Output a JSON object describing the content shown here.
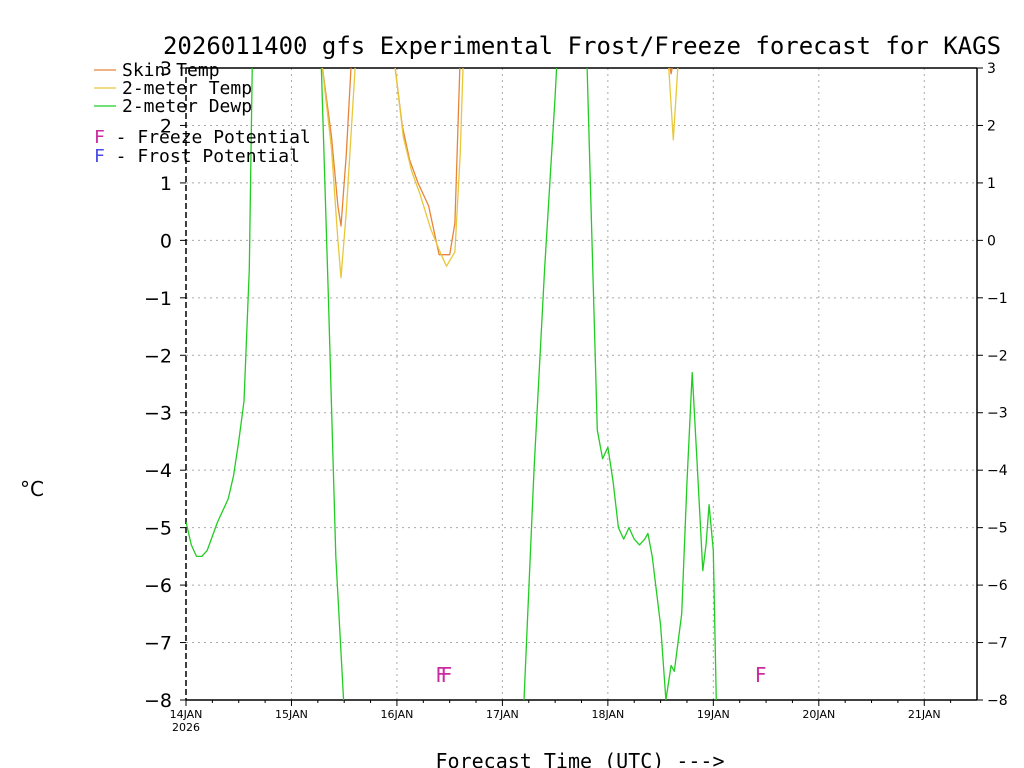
{
  "chart_data": {
    "type": "line",
    "title": "2026011400 gfs Experimental Frost/Freeze forecast for KAGS",
    "xlabel": "Forecast Time (UTC) --->",
    "ylabel": "°C",
    "ylim": [
      -8,
      3
    ],
    "xlim": [
      0,
      7.5
    ],
    "grid": true,
    "yticks": [
      "−8",
      "−7",
      "−6",
      "−5",
      "−4",
      "−3",
      "−2",
      "−1",
      "0",
      "1",
      "2",
      "3"
    ],
    "yticks_right": [
      "−8",
      "−7",
      "−6",
      "−5",
      "−4",
      "−3",
      "−2",
      "−1",
      "0",
      "1",
      "2",
      "3"
    ],
    "x_ticks": [
      {
        "x": 0,
        "label": "14JAN",
        "sublabel": "2026"
      },
      {
        "x": 1,
        "label": "15JAN"
      },
      {
        "x": 2,
        "label": "16JAN"
      },
      {
        "x": 3,
        "label": "17JAN"
      },
      {
        "x": 4,
        "label": "18JAN"
      },
      {
        "x": 5,
        "label": "19JAN"
      },
      {
        "x": 6,
        "label": "20JAN"
      },
      {
        "x": 7,
        "label": "21JAN"
      }
    ],
    "legend": [
      {
        "label": "Skin Temp",
        "color": "#e8843a"
      },
      {
        "label": "2-meter Temp",
        "color": "#e6c83a"
      },
      {
        "label": "2-meter Dewp",
        "color": "#22cc22"
      }
    ],
    "potential_legend": [
      {
        "marker": "F",
        "label": " - Freeze Potential",
        "color": "#cc2aa0"
      },
      {
        "marker": "F",
        "label": " - Frost Potential",
        "color": "#4a4ae8"
      }
    ],
    "series": [
      {
        "name": "Skin Temp",
        "color": "#e8843a",
        "segments": [
          [
            [
              1.28,
              3.2
            ],
            [
              1.38,
              1.8
            ],
            [
              1.44,
              0.6
            ],
            [
              1.47,
              0.25
            ],
            [
              1.52,
              1.5
            ],
            [
              1.57,
              3.2
            ]
          ],
          [
            [
              1.97,
              3.2
            ],
            [
              2.05,
              2.0
            ],
            [
              2.12,
              1.4
            ],
            [
              2.2,
              1.0
            ],
            [
              2.3,
              0.6
            ],
            [
              2.4,
              -0.25
            ],
            [
              2.5,
              -0.25
            ],
            [
              2.55,
              0.3
            ],
            [
              2.6,
              3.2
            ]
          ],
          [
            [
              4.57,
              3.2
            ],
            [
              4.6,
              2.9
            ],
            [
              4.63,
              3.2
            ]
          ]
        ]
      },
      {
        "name": "2-meter Temp",
        "color": "#e6c83a",
        "segments": [
          [
            [
              1.28,
              3.2
            ],
            [
              1.38,
              1.6
            ],
            [
              1.44,
              0.0
            ],
            [
              1.47,
              -0.65
            ],
            [
              1.52,
              0.5
            ],
            [
              1.57,
              2.0
            ],
            [
              1.61,
              3.2
            ]
          ],
          [
            [
              1.97,
              3.2
            ],
            [
              2.06,
              1.8
            ],
            [
              2.14,
              1.2
            ],
            [
              2.22,
              0.8
            ],
            [
              2.32,
              0.2
            ],
            [
              2.42,
              -0.25
            ],
            [
              2.47,
              -0.45
            ],
            [
              2.55,
              -0.2
            ],
            [
              2.6,
              1.5
            ],
            [
              2.63,
              3.2
            ]
          ],
          [
            [
              4.57,
              3.2
            ],
            [
              4.62,
              1.75
            ],
            [
              4.67,
              3.2
            ]
          ]
        ]
      },
      {
        "name": "2-meter Dewp",
        "color": "#22cc22",
        "segments": [
          [
            [
              0,
              -4.9
            ],
            [
              0.05,
              -5.3
            ],
            [
              0.1,
              -5.5
            ],
            [
              0.15,
              -5.5
            ],
            [
              0.2,
              -5.4
            ],
            [
              0.3,
              -4.9
            ],
            [
              0.4,
              -4.5
            ],
            [
              0.45,
              -4.1
            ],
            [
              0.5,
              -3.5
            ],
            [
              0.55,
              -2.8
            ],
            [
              0.6,
              -0.5
            ],
            [
              0.63,
              3.2
            ]
          ],
          [
            [
              1.28,
              3.2
            ],
            [
              1.35,
              -1.0
            ],
            [
              1.42,
              -5.5
            ],
            [
              1.5,
              -8.2
            ]
          ],
          [
            [
              3.2,
              -8.2
            ],
            [
              3.3,
              -4.0
            ],
            [
              3.4,
              -0.5
            ],
            [
              3.5,
              2.5
            ],
            [
              3.52,
              3.2
            ]
          ],
          [
            [
              3.8,
              3.2
            ],
            [
              3.9,
              -3.3
            ],
            [
              3.95,
              -3.8
            ],
            [
              4.0,
              -3.6
            ],
            [
              4.05,
              -4.2
            ],
            [
              4.1,
              -5.0
            ],
            [
              4.15,
              -5.2
            ],
            [
              4.2,
              -5.0
            ],
            [
              4.25,
              -5.2
            ],
            [
              4.3,
              -5.3
            ],
            [
              4.35,
              -5.2
            ],
            [
              4.38,
              -5.1
            ],
            [
              4.42,
              -5.5
            ],
            [
              4.5,
              -6.7
            ],
            [
              4.55,
              -8.0
            ],
            [
              4.6,
              -7.4
            ],
            [
              4.63,
              -7.5
            ],
            [
              4.7,
              -6.5
            ],
            [
              4.75,
              -4.2
            ],
            [
              4.8,
              -2.3
            ],
            [
              4.85,
              -4.0
            ],
            [
              4.9,
              -5.75
            ],
            [
              4.93,
              -5.3
            ],
            [
              4.96,
              -4.6
            ],
            [
              5.0,
              -5.4
            ],
            [
              5.03,
              -8.2
            ]
          ]
        ]
      }
    ],
    "markers": [
      {
        "x": 2.42,
        "y": -7.55,
        "text": "F",
        "color": "#cc2aa0"
      },
      {
        "x": 2.47,
        "y": -7.55,
        "text": "F",
        "color": "#cc2aa0"
      },
      {
        "x": 5.45,
        "y": -7.55,
        "text": "F",
        "color": "#cc2aa0"
      }
    ]
  }
}
